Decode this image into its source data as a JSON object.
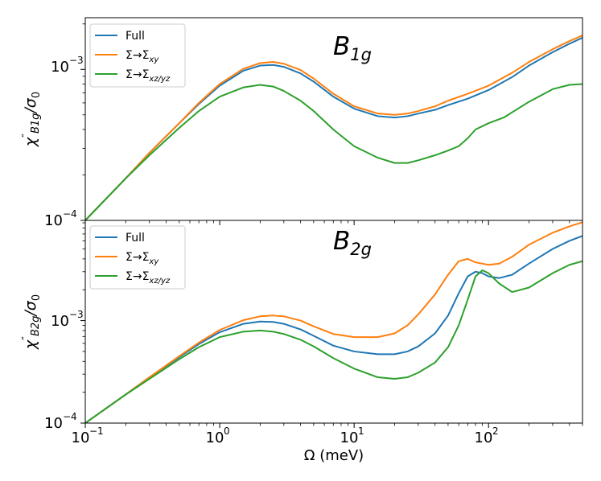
{
  "chart_data": [
    {
      "type": "line",
      "panel": "top",
      "title": "B",
      "title_sub": "1g",
      "xscale": "log",
      "yscale": "log",
      "xlim": [
        0.1,
        500
      ],
      "ylim": [
        0.0001,
        0.0022
      ],
      "ylabel": "χ''B1g/σ0",
      "ylabel_main": "χ",
      "ylabel_prime": "″",
      "ylabel_sub": "B1g",
      "ylabel_tail": "/σ",
      "ylabel_tail_sub": "0",
      "ytick_labels": [
        {
          "value": 0.001,
          "base": "10",
          "exp": "−3"
        },
        {
          "value": 0.0001,
          "base": "10",
          "exp": "−4"
        }
      ],
      "legend": {
        "position": "top-left",
        "entries": [
          {
            "series": "Full",
            "label": "Full"
          },
          {
            "series": "xy",
            "label": "Σ→Σ",
            "sub": "xy"
          },
          {
            "series": "xzyz",
            "label": "Σ→Σ",
            "sub": "xz/yz"
          }
        ]
      },
      "series": [
        {
          "name": "Full",
          "color": "#1f77b4",
          "x": [
            0.1,
            0.2,
            0.3,
            0.5,
            0.7,
            1.0,
            1.5,
            2.0,
            2.5,
            3.0,
            4.0,
            5.0,
            7.0,
            10,
            15,
            20,
            25,
            30,
            40,
            50,
            70,
            100,
            150,
            200,
            300,
            400,
            500
          ],
          "y": [
            0.0001,
            0.00019,
            0.00028,
            0.00044,
            0.00059,
            0.00078,
            0.00098,
            0.00106,
            0.00107,
            0.00104,
            0.00094,
            0.00083,
            0.00066,
            0.00055,
            0.00049,
            0.00048,
            0.00049,
            0.00051,
            0.00054,
            0.00058,
            0.00064,
            0.00073,
            0.00089,
            0.00106,
            0.0013,
            0.00148,
            0.00162
          ]
        },
        {
          "name": "Σ→Σxy",
          "color": "#ff7f0e",
          "x": [
            0.1,
            0.2,
            0.3,
            0.5,
            0.7,
            1.0,
            1.5,
            2.0,
            2.5,
            3.0,
            4.0,
            5.0,
            7.0,
            10,
            15,
            20,
            25,
            30,
            40,
            50,
            70,
            100,
            150,
            200,
            300,
            400,
            500
          ],
          "y": [
            0.0001,
            0.00019,
            0.00028,
            0.00044,
            0.0006,
            0.0008,
            0.00101,
            0.0011,
            0.00112,
            0.00109,
            0.00099,
            0.00087,
            0.00069,
            0.00057,
            0.00051,
            0.0005,
            0.00051,
            0.00053,
            0.00057,
            0.00062,
            0.00069,
            0.00078,
            0.00095,
            0.00112,
            0.00136,
            0.00154,
            0.00168
          ]
        },
        {
          "name": "Σ→Σxz/yz",
          "color": "#2ca02c",
          "x": [
            0.1,
            0.2,
            0.3,
            0.5,
            0.7,
            1.0,
            1.5,
            2.0,
            2.5,
            3.0,
            4.0,
            5.0,
            7.0,
            10,
            15,
            20,
            25,
            30,
            40,
            50,
            60,
            70,
            80,
            100,
            130,
            150,
            200,
            300,
            400,
            500
          ],
          "y": [
            0.0001,
            0.00019,
            0.00027,
            0.00041,
            0.00053,
            0.00066,
            0.00076,
            0.00079,
            0.00077,
            0.00072,
            0.00062,
            0.00053,
            0.0004,
            0.00031,
            0.00026,
            0.00024,
            0.00024,
            0.00025,
            0.00027,
            0.00029,
            0.00031,
            0.00035,
            0.0004,
            0.00044,
            0.00048,
            0.00052,
            0.00061,
            0.00074,
            0.00079,
            0.0008
          ]
        }
      ]
    },
    {
      "type": "line",
      "panel": "bottom",
      "title": "B",
      "title_sub": "2g",
      "xscale": "log",
      "yscale": "log",
      "xlim": [
        0.1,
        500
      ],
      "ylim": [
        0.0001,
        0.0095
      ],
      "xlabel": "Ω (meV)",
      "ylabel": "χ''B2g/σ0",
      "ylabel_main": "χ",
      "ylabel_prime": "″",
      "ylabel_sub": "B2g",
      "ylabel_tail": "/σ",
      "ylabel_tail_sub": "0",
      "ytick_labels": [
        {
          "value": 0.001,
          "base": "10",
          "exp": "−3"
        },
        {
          "value": 0.0001,
          "base": "10",
          "exp": "−4"
        }
      ],
      "xtick_labels": [
        {
          "value": 0.1,
          "base": "10",
          "exp": "−1"
        },
        {
          "value": 1,
          "base": "10",
          "exp": "0"
        },
        {
          "value": 10,
          "base": "10",
          "exp": "1"
        },
        {
          "value": 100,
          "base": "10",
          "exp": "2"
        }
      ],
      "legend": {
        "position": "top-left",
        "entries": [
          {
            "series": "Full",
            "label": "Full"
          },
          {
            "series": "xy",
            "label": "Σ→Σ",
            "sub": "xy"
          },
          {
            "series": "xzyz",
            "label": "Σ→Σ",
            "sub": "xz/yz"
          }
        ]
      },
      "series": [
        {
          "name": "Full",
          "color": "#1f77b4",
          "x": [
            0.1,
            0.2,
            0.3,
            0.5,
            0.7,
            1.0,
            1.5,
            2.0,
            2.5,
            3.0,
            4.0,
            5.0,
            7.0,
            10,
            15,
            20,
            25,
            30,
            40,
            50,
            60,
            70,
            80,
            90,
            100,
            120,
            150,
            200,
            300,
            400,
            500
          ],
          "y": [
            0.0001,
            0.00019,
            0.00028,
            0.00044,
            0.00059,
            0.00077,
            0.00093,
            0.00098,
            0.00097,
            0.00093,
            0.00082,
            0.00071,
            0.00057,
            0.0005,
            0.00047,
            0.00047,
            0.0005,
            0.00056,
            0.00075,
            0.00112,
            0.00185,
            0.0027,
            0.003,
            0.0029,
            0.0027,
            0.0026,
            0.0028,
            0.0036,
            0.005,
            0.006,
            0.0067
          ]
        },
        {
          "name": "Σ→Σxy",
          "color": "#ff7f0e",
          "x": [
            0.1,
            0.2,
            0.3,
            0.5,
            0.7,
            1.0,
            1.5,
            2.0,
            2.5,
            3.0,
            4.0,
            5.0,
            7.0,
            10,
            15,
            20,
            25,
            30,
            40,
            50,
            60,
            70,
            80,
            100,
            120,
            150,
            200,
            300,
            400,
            500
          ],
          "y": [
            0.0001,
            0.00019,
            0.00028,
            0.00045,
            0.00061,
            0.00081,
            0.00101,
            0.0011,
            0.00112,
            0.0011,
            0.001,
            0.00088,
            0.00074,
            0.00069,
            0.00069,
            0.00075,
            0.0009,
            0.00115,
            0.0018,
            0.0028,
            0.0038,
            0.004,
            0.0037,
            0.0035,
            0.0036,
            0.0042,
            0.0055,
            0.0072,
            0.0083,
            0.0091
          ]
        },
        {
          "name": "Σ→Σxz/yz",
          "color": "#2ca02c",
          "x": [
            0.1,
            0.2,
            0.3,
            0.5,
            0.7,
            1.0,
            1.5,
            2.0,
            2.5,
            3.0,
            4.0,
            5.0,
            7.0,
            10,
            15,
            20,
            25,
            30,
            40,
            50,
            60,
            70,
            80,
            90,
            100,
            120,
            150,
            200,
            300,
            400,
            500
          ],
          "y": [
            0.0001,
            0.00019,
            0.00027,
            0.00042,
            0.00055,
            0.00069,
            0.00078,
            0.0008,
            0.00078,
            0.00074,
            0.00065,
            0.00056,
            0.00043,
            0.00034,
            0.00028,
            0.00027,
            0.00028,
            0.00031,
            0.00039,
            0.00055,
            0.0009,
            0.0016,
            0.0027,
            0.0031,
            0.0029,
            0.0023,
            0.0019,
            0.0021,
            0.0029,
            0.0035,
            0.0038
          ]
        }
      ]
    }
  ]
}
